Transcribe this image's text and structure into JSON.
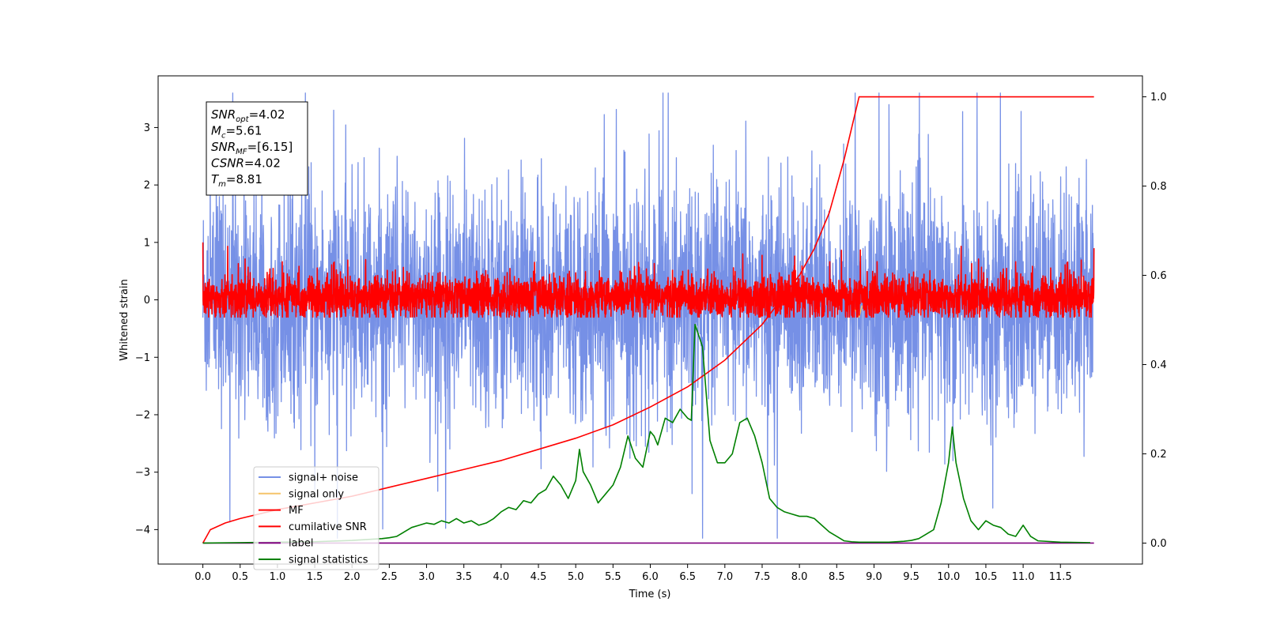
{
  "chart_data": {
    "type": "line",
    "xlabel": "Time (s)",
    "ylabel": "Whitened strain",
    "xlim": [
      -0.6,
      12.6
    ],
    "ylim": [
      -4.6,
      3.9
    ],
    "ylim_right": [
      -0.047,
      1.047
    ],
    "x_ticks": [
      "0.0",
      "0.5",
      "1.0",
      "1.5",
      "2.0",
      "2.5",
      "3.0",
      "3.5",
      "4.0",
      "4.5",
      "5.0",
      "5.5",
      "6.0",
      "6.5",
      "7.0",
      "7.5",
      "8.0",
      "8.5",
      "9.0",
      "9.5",
      "10.0",
      "10.5",
      "11.0",
      "11.5"
    ],
    "y_ticks_left": [
      "3",
      "2",
      "1",
      "0",
      "−1",
      "−2",
      "−3",
      "−4"
    ],
    "y_ticks_right": [
      "0.0",
      "0.2",
      "0.4",
      "0.6",
      "0.8",
      "1.0"
    ],
    "legend": {
      "placement": "lower-left",
      "entries": [
        {
          "label": "signal+ noise",
          "color": "#5e7ce2"
        },
        {
          "label": "signal only",
          "color": "#f5c46a"
        },
        {
          "label": "MF",
          "color": "#ff0000"
        },
        {
          "label": "cumilative SNR",
          "color": "#ff0000"
        },
        {
          "label": "label",
          "color": "#800080"
        },
        {
          "label": "signal statistics",
          "color": "#008000"
        }
      ]
    },
    "annotation": [
      {
        "var": "SNR",
        "sub": "opt",
        "value": "=4.02"
      },
      {
        "var": "M",
        "sub": "c",
        "value": "=5.61"
      },
      {
        "var": "SNR",
        "sub": "MF",
        "value": "=[6.15]"
      },
      {
        "var": "CSNR",
        "sub": "",
        "value": "=4.02"
      },
      {
        "var": "T",
        "sub": "m",
        "value": "=8.81"
      }
    ],
    "series": [
      {
        "name": "signal+ noise",
        "axis": "left",
        "style": "noise",
        "x_range": [
          0.0,
          11.95
        ],
        "typical_range": [
          -1.6,
          1.6
        ],
        "max": 3.6,
        "min": -4.15,
        "spikes": [
          [
            6.7,
            -4.15
          ],
          [
            0.4,
            3.6
          ],
          [
            9.2,
            3.4
          ],
          [
            1.5,
            -3.3
          ]
        ]
      },
      {
        "name": "signal only",
        "axis": "left",
        "x": [
          8.68,
          8.72,
          8.76,
          8.8,
          8.84
        ],
        "y": [
          0.0,
          -0.1,
          -0.2,
          -0.3,
          -0.1
        ]
      },
      {
        "name": "MF",
        "axis": "left",
        "style": "noise",
        "x_range": [
          0.0,
          11.95
        ],
        "typical_range": [
          -0.25,
          0.35
        ],
        "max": 1.0,
        "min": -0.3,
        "spikes": [
          [
            0.0,
            1.0
          ],
          [
            11.95,
            0.9
          ]
        ]
      },
      {
        "name": "cumilative SNR",
        "axis": "right",
        "x": [
          0.0,
          0.05,
          0.1,
          0.3,
          0.5,
          1.0,
          1.5,
          2.0,
          2.5,
          3.0,
          3.5,
          4.0,
          4.5,
          5.0,
          5.5,
          6.0,
          6.5,
          7.0,
          7.5,
          8.0,
          8.2,
          8.4,
          8.5,
          8.6,
          8.7,
          8.8,
          9.0,
          10.0,
          11.0,
          11.95
        ],
        "y": [
          0.0,
          0.015,
          0.03,
          0.045,
          0.055,
          0.075,
          0.09,
          0.105,
          0.125,
          0.145,
          0.165,
          0.185,
          0.21,
          0.235,
          0.265,
          0.305,
          0.35,
          0.41,
          0.49,
          0.6,
          0.66,
          0.74,
          0.8,
          0.86,
          0.93,
          1.0,
          1.0,
          1.0,
          1.0,
          1.0
        ]
      },
      {
        "name": "label",
        "axis": "right",
        "x": [
          0.0,
          11.95
        ],
        "y": [
          0.0,
          0.0
        ]
      },
      {
        "name": "signal statistics",
        "axis": "right",
        "x": [
          0.0,
          0.5,
          1.0,
          1.5,
          2.0,
          2.2,
          2.4,
          2.5,
          2.6,
          2.7,
          2.8,
          2.9,
          3.0,
          3.1,
          3.2,
          3.3,
          3.4,
          3.5,
          3.6,
          3.7,
          3.8,
          3.9,
          4.0,
          4.1,
          4.2,
          4.3,
          4.4,
          4.5,
          4.6,
          4.7,
          4.8,
          4.9,
          5.0,
          5.05,
          5.1,
          5.2,
          5.3,
          5.4,
          5.5,
          5.6,
          5.7,
          5.8,
          5.9,
          6.0,
          6.05,
          6.1,
          6.2,
          6.3,
          6.4,
          6.5,
          6.55,
          6.6,
          6.7,
          6.8,
          6.9,
          7.0,
          7.1,
          7.2,
          7.3,
          7.4,
          7.5,
          7.6,
          7.7,
          7.8,
          7.9,
          8.0,
          8.1,
          8.2,
          8.3,
          8.4,
          8.5,
          8.6,
          8.7,
          8.8,
          9.0,
          9.2,
          9.4,
          9.5,
          9.6,
          9.7,
          9.75,
          9.8,
          9.85,
          9.9,
          10.0,
          10.05,
          10.1,
          10.2,
          10.3,
          10.4,
          10.5,
          10.6,
          10.7,
          10.8,
          10.9,
          11.0,
          11.1,
          11.2,
          11.5,
          11.9
        ],
        "y": [
          0.0,
          0.001,
          0.002,
          0.003,
          0.006,
          0.008,
          0.01,
          0.012,
          0.015,
          0.025,
          0.035,
          0.04,
          0.045,
          0.042,
          0.05,
          0.045,
          0.055,
          0.045,
          0.05,
          0.04,
          0.045,
          0.055,
          0.07,
          0.08,
          0.075,
          0.095,
          0.09,
          0.11,
          0.12,
          0.15,
          0.13,
          0.1,
          0.14,
          0.21,
          0.16,
          0.13,
          0.09,
          0.11,
          0.13,
          0.17,
          0.24,
          0.19,
          0.17,
          0.25,
          0.24,
          0.22,
          0.28,
          0.27,
          0.3,
          0.28,
          0.275,
          0.49,
          0.44,
          0.23,
          0.18,
          0.18,
          0.2,
          0.27,
          0.28,
          0.24,
          0.18,
          0.1,
          0.08,
          0.07,
          0.065,
          0.06,
          0.06,
          0.055,
          0.04,
          0.025,
          0.015,
          0.005,
          0.003,
          0.002,
          0.002,
          0.002,
          0.004,
          0.006,
          0.01,
          0.02,
          0.025,
          0.03,
          0.06,
          0.09,
          0.18,
          0.26,
          0.18,
          0.1,
          0.05,
          0.03,
          0.05,
          0.04,
          0.035,
          0.02,
          0.015,
          0.04,
          0.015,
          0.005,
          0.002,
          0.001
        ]
      }
    ]
  }
}
